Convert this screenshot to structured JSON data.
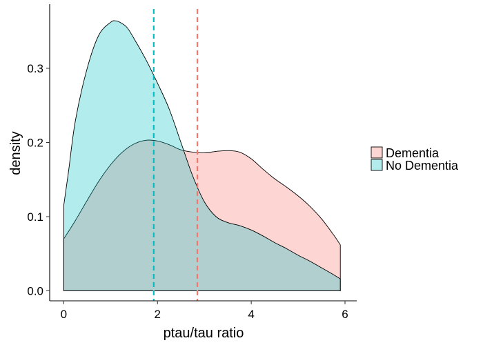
{
  "chart_data": {
    "type": "area",
    "xlabel": "ptau/tau ratio",
    "ylabel": "density",
    "xlim": [
      -0.3,
      6.25
    ],
    "ylim": [
      -0.0135,
      0.3865
    ],
    "x_ticks": [
      0,
      2,
      4,
      6
    ],
    "x_tick_labels": [
      "0",
      "2",
      "4",
      "6"
    ],
    "y_ticks": [
      0.0,
      0.1,
      0.2,
      0.3
    ],
    "y_tick_labels": [
      "0.0",
      "0.1",
      "0.2",
      "0.3"
    ],
    "grid": false,
    "legend_position": "right",
    "series": [
      {
        "name": "Dementia",
        "color": "#F8766D",
        "fill": "rgba(248,118,109,0.3)",
        "mean": 2.85,
        "x": [
          0.0,
          0.25,
          0.5,
          0.75,
          1.0,
          1.25,
          1.5,
          1.75,
          2.0,
          2.25,
          2.5,
          2.75,
          3.0,
          3.25,
          3.5,
          3.75,
          4.0,
          4.25,
          4.5,
          4.75,
          5.0,
          5.25,
          5.5,
          5.75,
          5.9
        ],
        "values": [
          0.07,
          0.095,
          0.122,
          0.148,
          0.17,
          0.187,
          0.198,
          0.203,
          0.202,
          0.197,
          0.19,
          0.187,
          0.186,
          0.188,
          0.189,
          0.187,
          0.178,
          0.164,
          0.151,
          0.14,
          0.128,
          0.114,
          0.097,
          0.076,
          0.062
        ]
      },
      {
        "name": "No Dementia",
        "color": "#00BFC4",
        "fill": "rgba(0,191,196,0.3)",
        "mean": 1.92,
        "x": [
          0.0,
          0.1,
          0.25,
          0.5,
          0.75,
          1.0,
          1.1,
          1.2,
          1.35,
          1.5,
          1.75,
          2.0,
          2.25,
          2.5,
          2.75,
          3.0,
          3.25,
          3.5,
          3.75,
          4.0,
          4.25,
          4.5,
          4.75,
          5.0,
          5.25,
          5.5,
          5.75,
          5.9
        ],
        "values": [
          0.115,
          0.16,
          0.23,
          0.3,
          0.345,
          0.362,
          0.364,
          0.362,
          0.355,
          0.34,
          0.312,
          0.28,
          0.245,
          0.2,
          0.155,
          0.12,
          0.1,
          0.092,
          0.088,
          0.082,
          0.074,
          0.065,
          0.057,
          0.048,
          0.04,
          0.031,
          0.022,
          0.016
        ]
      }
    ]
  }
}
